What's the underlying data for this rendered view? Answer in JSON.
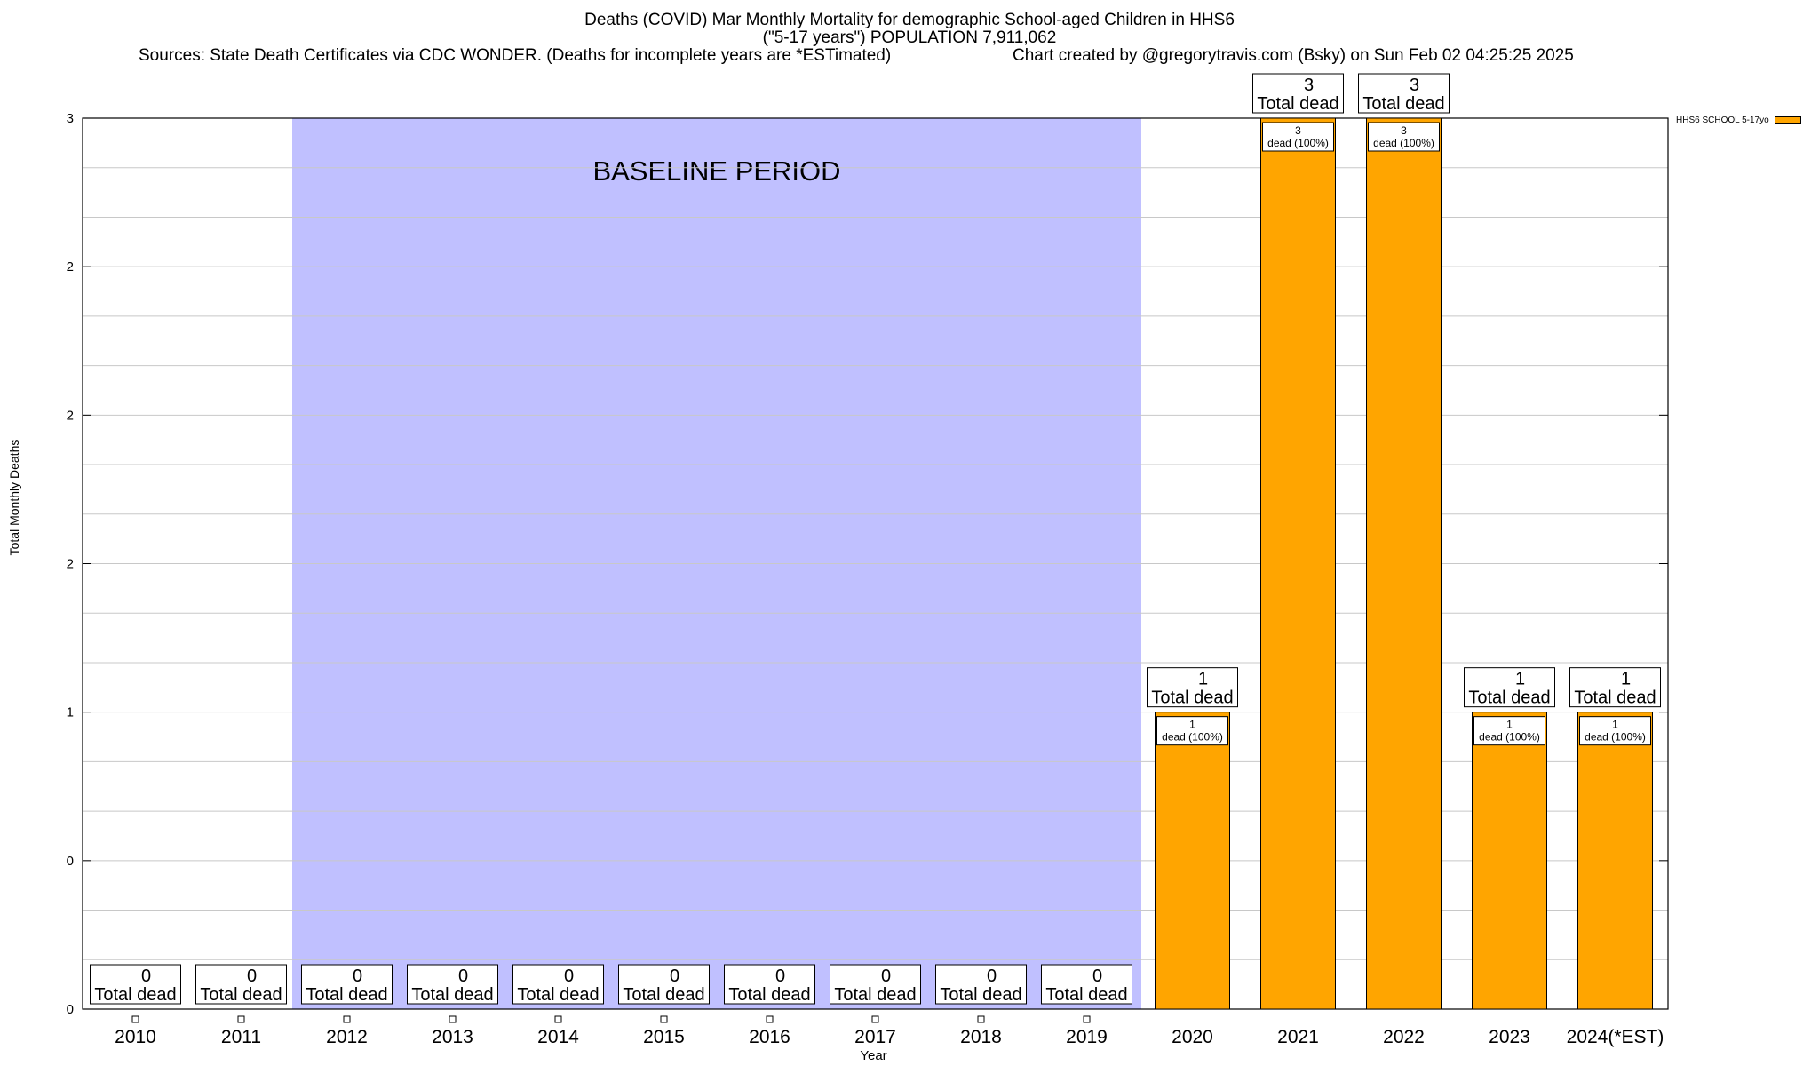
{
  "title": {
    "line1": "Deaths (COVID) Mar Monthly Mortality for demographic School-aged Children in HHS6",
    "line2": "(\"5-17 years\") POPULATION 7,911,062",
    "sources": "Sources: State Death Certificates via CDC WONDER. (Deaths for incomplete years are *ESTimated)",
    "credit": "Chart created by @gregorytravis.com (Bsky) on Sun Feb 02 04:25:25 2025"
  },
  "colors": {
    "bar": "#FFA500",
    "baseline": "#C0C0FF",
    "grid": "#C8C8C8"
  },
  "chart_data": {
    "type": "bar",
    "title": "Deaths (COVID) Mar Monthly Mortality for demographic School-aged Children in HHS6",
    "xlabel": "Year",
    "ylabel": "Total Monthly Deaths",
    "categories": [
      "2010",
      "2011",
      "2012",
      "2013",
      "2014",
      "2015",
      "2016",
      "2017",
      "2018",
      "2019",
      "2020",
      "2021",
      "2022",
      "2023",
      "2024(*EST)"
    ],
    "series": [
      {
        "name": "HHS6 SCHOOL 5-17yo",
        "values": [
          0,
          0,
          0,
          0,
          0,
          0,
          0,
          0,
          0,
          0,
          1,
          3,
          3,
          1,
          1
        ]
      }
    ],
    "ylim": [
      0,
      3
    ],
    "yticks": [
      0,
      0.5,
      1,
      1.5,
      2,
      2.5,
      3
    ],
    "ytick_labels": [
      "0",
      "0",
      "1",
      "2",
      "2",
      "2",
      "3"
    ],
    "baseline_period": {
      "label": "BASELINE PERIOD",
      "from": "2012",
      "to": "2019"
    },
    "total_label_suffix": "Total dead",
    "inner_label_suffix": "dead (100%)",
    "grid": true,
    "legend": "top-right"
  }
}
